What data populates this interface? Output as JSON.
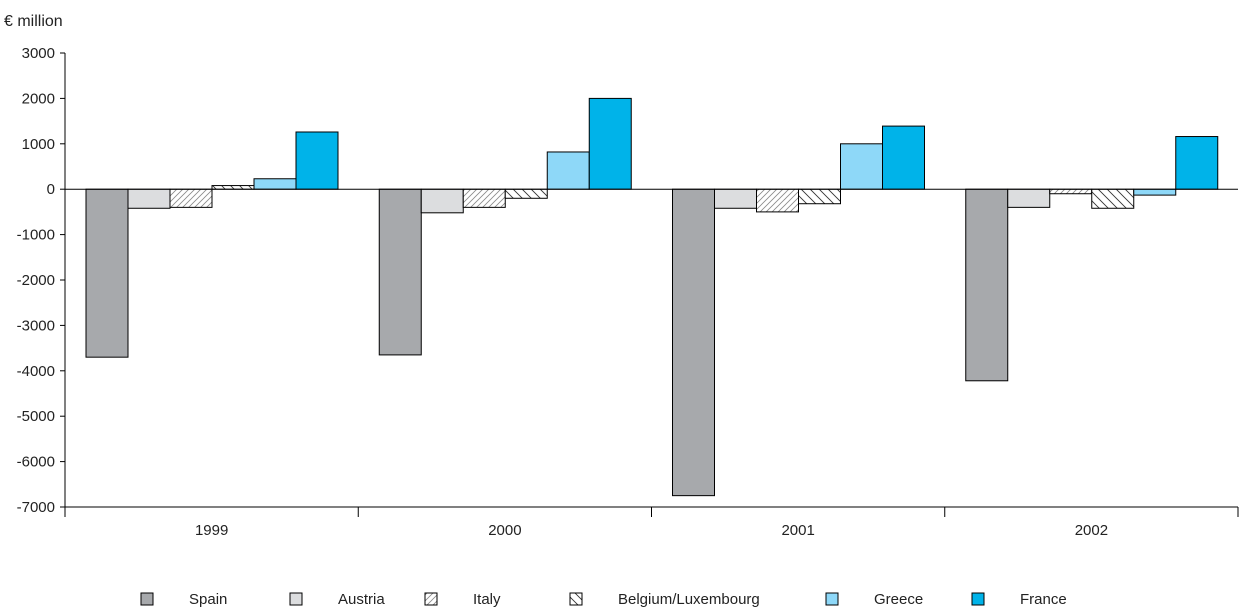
{
  "chart_data": {
    "type": "bar",
    "ylabel": "€ million",
    "categories": [
      "1999",
      "2000",
      "2001",
      "2002"
    ],
    "ylim": [
      -7000,
      3000
    ],
    "yticks": [
      3000,
      2000,
      1000,
      0,
      -1000,
      -2000,
      -3000,
      -4000,
      -5000,
      -6000,
      -7000
    ],
    "grid": false,
    "legend_position": "bottom",
    "series": [
      {
        "name": "Spain",
        "values": [
          -3700,
          -3650,
          -6750,
          -4220
        ],
        "color": "#a7a9ac",
        "pattern": "solid"
      },
      {
        "name": "Austria",
        "values": [
          -420,
          -520,
          -420,
          -400
        ],
        "color": "#dcdddf",
        "pattern": "solid"
      },
      {
        "name": "Italy",
        "values": [
          -400,
          -400,
          -500,
          -100
        ],
        "color": "#ffffff",
        "pattern": "hatch-forward"
      },
      {
        "name": "Belgium/Luxembourg",
        "values": [
          80,
          -200,
          -320,
          -420
        ],
        "color": "#ffffff",
        "pattern": "hatch-back"
      },
      {
        "name": "Greece",
        "values": [
          230,
          820,
          1000,
          -130
        ],
        "color": "#8ed8f8",
        "pattern": "solid"
      },
      {
        "name": "France",
        "values": [
          1260,
          2000,
          1390,
          1160
        ],
        "color": "#00b3e9",
        "pattern": "solid"
      }
    ]
  }
}
